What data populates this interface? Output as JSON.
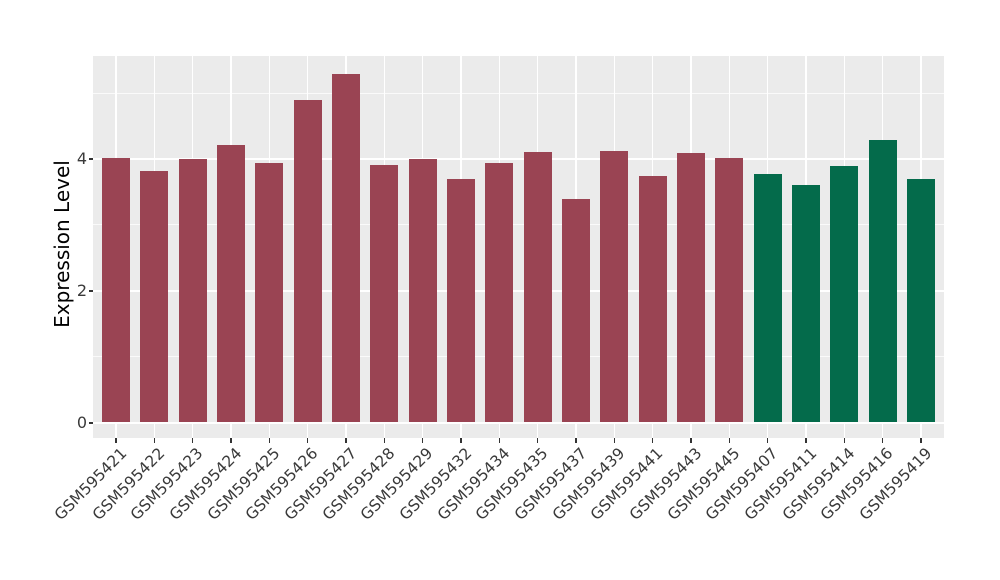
{
  "chart_data": {
    "type": "bar",
    "title": "",
    "xlabel": "",
    "ylabel": "Expression Level",
    "categories": [
      "GSM595421",
      "GSM595422",
      "GSM595423",
      "GSM595424",
      "GSM595425",
      "GSM595426",
      "GSM595427",
      "GSM595428",
      "GSM595429",
      "GSM595432",
      "GSM595434",
      "GSM595435",
      "GSM595437",
      "GSM595439",
      "GSM595441",
      "GSM595443",
      "GSM595445",
      "GSM595407",
      "GSM595411",
      "GSM595414",
      "GSM595416",
      "GSM595419"
    ],
    "values": [
      4.02,
      3.81,
      4.0,
      4.21,
      3.94,
      4.9,
      5.29,
      3.91,
      4.0,
      3.7,
      3.94,
      4.11,
      3.39,
      4.12,
      3.74,
      4.09,
      4.01,
      3.77,
      3.6,
      3.89,
      4.29,
      3.7
    ],
    "bar_color_groups": [
      "red",
      "red",
      "red",
      "red",
      "red",
      "red",
      "red",
      "red",
      "red",
      "red",
      "red",
      "red",
      "red",
      "red",
      "red",
      "red",
      "red",
      "green",
      "green",
      "green",
      "green",
      "green"
    ],
    "palette": {
      "red": "#9A4453",
      "green": "#046B4B"
    },
    "ytick_labels": [
      "0",
      "2",
      "4"
    ],
    "ytick_values": [
      0,
      2,
      4
    ],
    "minor_gridline_values": [
      1,
      3,
      5
    ],
    "ylim": [
      -0.23,
      5.56
    ],
    "grid": true,
    "legend_position": "none",
    "panel_background": "#EBEBEB",
    "gridline_color": "#FFFFFF",
    "axis_text_color": "#3A3A3A",
    "axis_title_color": "#000000",
    "x_label_rotation_deg": 45
  }
}
